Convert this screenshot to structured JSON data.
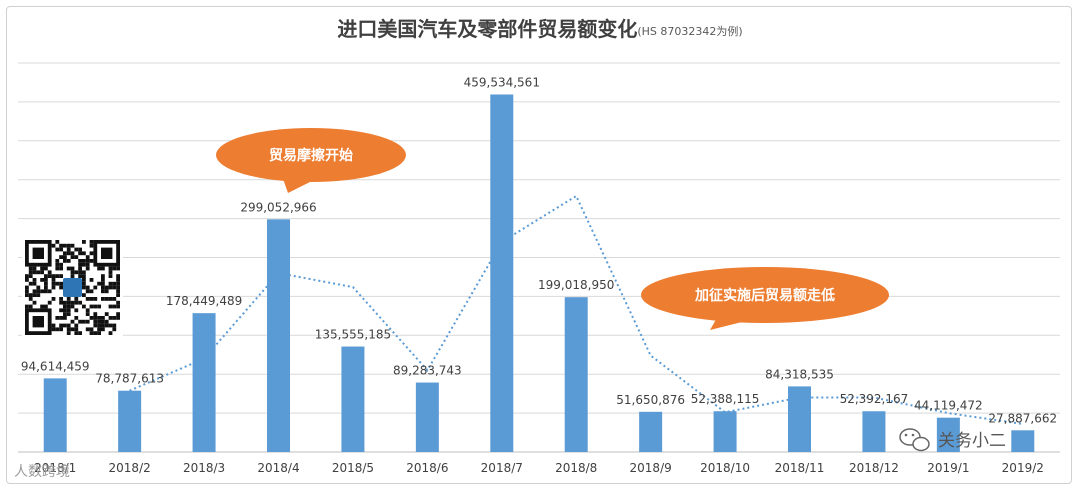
{
  "chart_data": {
    "type": "bar",
    "title": "进口美国汽车及零部件贸易额变化",
    "subtitle": "(HS 87032342为例)",
    "categories": [
      "2018/1",
      "2018/2",
      "2018/3",
      "2018/4",
      "2018/5",
      "2018/6",
      "2018/7",
      "2018/8",
      "2018/9",
      "2018/10",
      "2018/11",
      "2018/12",
      "2019/1",
      "2019/2"
    ],
    "series": [
      {
        "type": "bar",
        "values": [
          94614459,
          78787613,
          178449489,
          299052966,
          135555185,
          89283743,
          459534561,
          199018950,
          51650876,
          52388115,
          84318535,
          52392167,
          44119472,
          27887662
        ],
        "labels": [
          "94,614,459",
          "78,787,613",
          "178,449,489",
          "299,052,966",
          "135,555,185",
          "89,283,743",
          "459,534,561",
          "199,018,950",
          "51,650,876",
          "52,388,115",
          "84,318,535",
          "52,392,167",
          "44,119,472",
          "27,887,662"
        ]
      },
      {
        "type": "trendline-dotted",
        "values": [
          null,
          78787613,
          120000000,
          230000000,
          212000000,
          105000000,
          270000000,
          329000000,
          124000000,
          51000000,
          70000000,
          70000000,
          50000000,
          36000000
        ]
      }
    ],
    "ylim": [
      0,
      500000000
    ],
    "grid": true,
    "legend": "none",
    "annotations": [
      {
        "text": "贸易摩擦开始"
      },
      {
        "text": "加征实施后贸易额走低"
      }
    ],
    "colors": {
      "bar": "#5b9bd5",
      "trend": "#5b9bd5",
      "callout": "#ed7d31",
      "grid": "#d9d9d9"
    }
  },
  "watermark": {
    "right_text": "关务小二",
    "left_text": "人数跨境",
    "icons": [
      "qr-code-icon",
      "wechat-icon"
    ]
  }
}
